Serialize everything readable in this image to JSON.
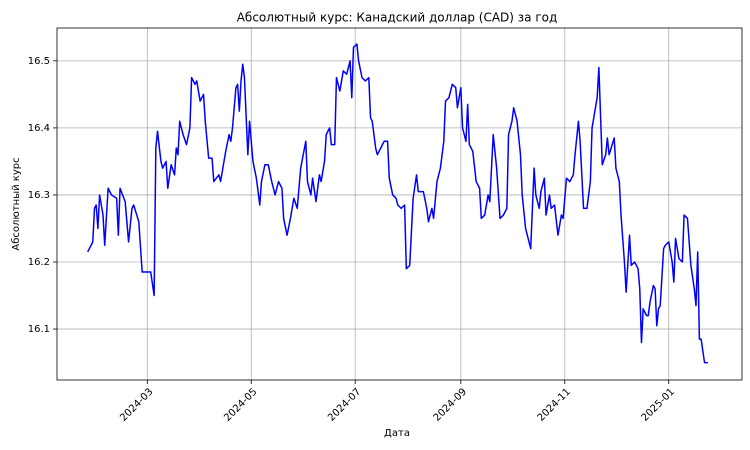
{
  "chart_data": {
    "type": "line",
    "title": "Абсолютный курс: Канадский доллар (CAD) за год",
    "xlabel": "Дата",
    "ylabel": "Абсолютный курс",
    "color": "#0000ff",
    "y_label_color": "#0000ff",
    "grid": true,
    "xlim": [
      19730,
      20132
    ],
    "xticks": [
      {
        "value": 19783,
        "label": "2024-03"
      },
      {
        "value": 19844,
        "label": "2024-05"
      },
      {
        "value": 19905,
        "label": "2024-07"
      },
      {
        "value": 19967,
        "label": "2024-09"
      },
      {
        "value": 20028,
        "label": "2024-11"
      },
      {
        "value": 20089,
        "label": "2025-01"
      }
    ],
    "ylim": [
      16.024,
      16.549
    ],
    "yticks": [
      16.1,
      16.2,
      16.3,
      16.4,
      16.5
    ],
    "x": [
      19748,
      19751,
      19752,
      19753,
      19754,
      19755,
      19757,
      19758,
      19760,
      19762,
      19765,
      19766,
      19767,
      19770,
      19772,
      19774,
      19775,
      19778,
      19780,
      19782,
      19785,
      19787,
      19788,
      19789,
      19791,
      19792,
      19794,
      19795,
      19797,
      19799,
      19800,
      19801,
      19802,
      19804,
      19806,
      19808,
      19809,
      19811,
      19812,
      19814,
      19816,
      19817,
      19819,
      19821,
      19822,
      19825,
      19826,
      19829,
      19831,
      19832,
      19833,
      19835,
      19836,
      19837,
      19838,
      19839,
      19840,
      19842,
      19843,
      19845,
      19847,
      19849,
      19850,
      19852,
      19854,
      19856,
      19858,
      19860,
      19862,
      19863,
      19865,
      19867,
      19869,
      19871,
      19873,
      19876,
      19877,
      19879,
      19880,
      19882,
      19884,
      19885,
      19887,
      19888,
      19890,
      19891,
      19893,
      19894,
      19896,
      19898,
      19900,
      19902,
      19903,
      19904,
      19906,
      19907,
      19909,
      19911,
      19913,
      19914,
      19915,
      19917,
      19918,
      19920,
      19922,
      19924,
      19925,
      19927,
      19929,
      19930,
      19932,
      19934,
      19935,
      19937,
      19939,
      19941,
      19942,
      19945,
      19947,
      19948,
      19950,
      19951,
      19953,
      19955,
      19957,
      19958,
      19960,
      19962,
      19964,
      19965,
      19967,
      19968,
      19970,
      19971,
      19972,
      19974,
      19976,
      19978,
      19979,
      19981,
      19983,
      19984,
      19986,
      19988,
      19990,
      19992,
      19994,
      19995,
      19997,
      19998,
      20000,
      20002,
      20003,
      20005,
      20008,
      20010,
      20011,
      20013,
      20014,
      20016,
      20017,
      20019,
      20020,
      20022,
      20024,
      20026,
      20027,
      20029,
      20031,
      20033,
      20034,
      20036,
      20037,
      20039,
      20041,
      20043,
      20044,
      20046,
      20047,
      20048,
      20050,
      20052,
      20053,
      20054,
      20057,
      20058,
      20060,
      20061,
      20063,
      20064,
      20066,
      20067,
      20069,
      20071,
      20072,
      20073,
      20074,
      20076,
      20077,
      20078,
      20080,
      20081,
      20082,
      20083,
      20084,
      20086,
      20087,
      20089,
      20091,
      20092,
      20093,
      20094,
      20095,
      20097,
      20098,
      20100,
      20102,
      20104,
      20105,
      20106,
      20107,
      20108,
      20110,
      20112
    ],
    "values": [
      16.215,
      16.23,
      16.28,
      16.285,
      16.25,
      16.3,
      16.27,
      16.225,
      16.31,
      16.3,
      16.295,
      16.24,
      16.31,
      16.29,
      16.23,
      16.28,
      16.285,
      16.26,
      16.185,
      16.185,
      16.185,
      16.15,
      16.37,
      16.395,
      16.35,
      16.34,
      16.35,
      16.31,
      16.345,
      16.33,
      16.37,
      16.36,
      16.41,
      16.39,
      16.375,
      16.4,
      16.475,
      16.465,
      16.47,
      16.44,
      16.45,
      16.41,
      16.355,
      16.355,
      16.32,
      16.33,
      16.32,
      16.365,
      16.39,
      16.38,
      16.4,
      16.46,
      16.465,
      16.425,
      16.47,
      16.495,
      16.475,
      16.36,
      16.41,
      16.35,
      16.325,
      16.285,
      16.32,
      16.345,
      16.345,
      16.32,
      16.3,
      16.32,
      16.31,
      16.265,
      16.24,
      16.265,
      16.295,
      16.28,
      16.34,
      16.38,
      16.32,
      16.3,
      16.325,
      16.29,
      16.33,
      16.32,
      16.35,
      16.39,
      16.4,
      16.375,
      16.375,
      16.475,
      16.455,
      16.485,
      16.48,
      16.5,
      16.445,
      16.52,
      16.525,
      16.5,
      16.475,
      16.47,
      16.475,
      16.415,
      16.41,
      16.37,
      16.36,
      16.37,
      16.38,
      16.38,
      16.325,
      16.3,
      16.295,
      16.285,
      16.28,
      16.285,
      16.19,
      16.195,
      16.295,
      16.33,
      16.305,
      16.305,
      16.28,
      16.26,
      16.28,
      16.265,
      16.32,
      16.34,
      16.38,
      16.44,
      16.445,
      16.465,
      16.46,
      16.43,
      16.46,
      16.4,
      16.38,
      16.435,
      16.375,
      16.365,
      16.32,
      16.31,
      16.265,
      16.27,
      16.3,
      16.29,
      16.39,
      16.34,
      16.265,
      16.27,
      16.28,
      16.39,
      16.41,
      16.43,
      16.41,
      16.36,
      16.3,
      16.25,
      16.22,
      16.34,
      16.3,
      16.28,
      16.305,
      16.325,
      16.27,
      16.3,
      16.28,
      16.285,
      16.24,
      16.27,
      16.265,
      16.325,
      16.32,
      16.33,
      16.36,
      16.41,
      16.38,
      16.28,
      16.28,
      16.32,
      16.4,
      16.43,
      16.445,
      16.49,
      16.345,
      16.36,
      16.385,
      16.36,
      16.385,
      16.34,
      16.32,
      16.27,
      16.2,
      16.155,
      16.24,
      16.195,
      16.2,
      16.19,
      16.16,
      16.08,
      16.13,
      16.12,
      16.12,
      16.14,
      16.165,
      16.16,
      16.105,
      16.13,
      16.135,
      16.22,
      16.225,
      16.23,
      16.2,
      16.17,
      16.235,
      16.22,
      16.205,
      16.2,
      16.27,
      16.265,
      16.195,
      16.16,
      16.135,
      16.215,
      16.085,
      16.085,
      16.05,
      16.05
    ]
  }
}
